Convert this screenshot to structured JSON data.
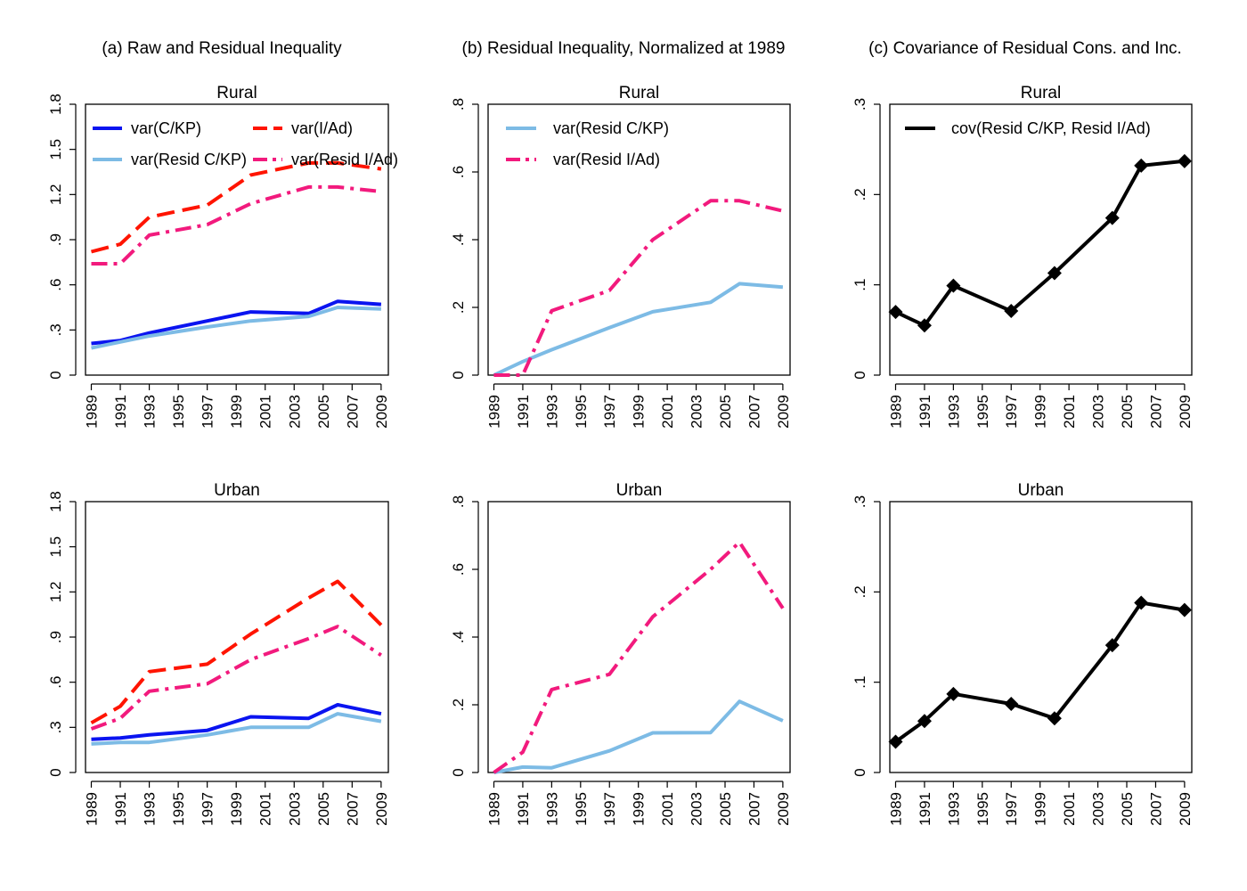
{
  "figure": {
    "column_titles": [
      "(a) Raw and Residual Inequality",
      "(b) Residual Inequality, Normalized at 1989",
      "(c) Covariance of Residual Cons. and Inc."
    ]
  },
  "colors": {
    "blue": "#0a14f0",
    "light_blue": "#7dbbe5",
    "red": "#ff1400",
    "pink": "#f21a7d",
    "black": "#000000"
  },
  "chart_data": [
    {
      "type": "line",
      "column": 0,
      "row": 0,
      "title": "Rural",
      "xlabel": "",
      "ylabel": "",
      "xlim": [
        1988.6,
        2009.5
      ],
      "ylim": [
        0,
        1.8
      ],
      "x_ticks": [
        "1989",
        "1991",
        "1993",
        "1995",
        "1997",
        "1999",
        "2001",
        "2003",
        "2005",
        "2007",
        "2009"
      ],
      "y_ticks": [
        "0",
        ".3",
        ".6",
        ".9",
        "1.2",
        "1.5",
        "1.8"
      ],
      "legend_position": "top",
      "series": [
        {
          "name": "var(C/KP)",
          "color": "blue",
          "style": "solid",
          "x": [
            1989,
            1991,
            1993,
            1997,
            2000,
            2004,
            2006,
            2009
          ],
          "y": [
            0.21,
            0.23,
            0.28,
            0.36,
            0.42,
            0.41,
            0.49,
            0.47
          ]
        },
        {
          "name": "var(I/Ad)",
          "color": "red",
          "style": "dashed",
          "x": [
            1989,
            1991,
            1993,
            1997,
            2000,
            2004,
            2006,
            2009
          ],
          "y": [
            0.82,
            0.87,
            1.05,
            1.13,
            1.33,
            1.41,
            1.41,
            1.37
          ]
        },
        {
          "name": "var(Resid C/KP)",
          "color": "light_blue",
          "style": "solid",
          "x": [
            1989,
            1991,
            1993,
            1997,
            2000,
            2004,
            2006,
            2009
          ],
          "y": [
            0.18,
            0.22,
            0.26,
            0.32,
            0.36,
            0.39,
            0.45,
            0.44
          ]
        },
        {
          "name": "var(Resid I/Ad)",
          "color": "pink",
          "style": "dashdot",
          "x": [
            1989,
            1991,
            1993,
            1997,
            2000,
            2004,
            2006,
            2009
          ],
          "y": [
            0.74,
            0.74,
            0.93,
            1.0,
            1.14,
            1.25,
            1.25,
            1.22
          ]
        }
      ]
    },
    {
      "type": "line",
      "column": 0,
      "row": 1,
      "title": "Urban",
      "xlabel": "",
      "ylabel": "",
      "xlim": [
        1988.6,
        2009.5
      ],
      "ylim": [
        0,
        1.8
      ],
      "x_ticks": [
        "1989",
        "1991",
        "1993",
        "1995",
        "1997",
        "1999",
        "2001",
        "2003",
        "2005",
        "2007",
        "2009"
      ],
      "y_ticks": [
        "0",
        ".3",
        ".6",
        ".9",
        "1.2",
        "1.5",
        "1.8"
      ],
      "series": [
        {
          "name": "var(C/KP)",
          "color": "blue",
          "style": "solid",
          "x": [
            1989,
            1991,
            1993,
            1997,
            2000,
            2004,
            2006,
            2009
          ],
          "y": [
            0.22,
            0.23,
            0.25,
            0.28,
            0.37,
            0.36,
            0.45,
            0.39
          ]
        },
        {
          "name": "var(I/Ad)",
          "color": "red",
          "style": "dashed",
          "x": [
            1989,
            1991,
            1993,
            1997,
            2000,
            2004,
            2006,
            2009
          ],
          "y": [
            0.33,
            0.44,
            0.67,
            0.72,
            0.92,
            1.16,
            1.27,
            0.98
          ]
        },
        {
          "name": "var(Resid C/KP)",
          "color": "light_blue",
          "style": "solid",
          "x": [
            1989,
            1991,
            1993,
            1997,
            2000,
            2004,
            2006,
            2009
          ],
          "y": [
            0.19,
            0.2,
            0.2,
            0.25,
            0.3,
            0.3,
            0.39,
            0.34
          ]
        },
        {
          "name": "var(Resid I/Ad)",
          "color": "pink",
          "style": "dashdot",
          "x": [
            1989,
            1991,
            1993,
            1997,
            2000,
            2004,
            2006,
            2009
          ],
          "y": [
            0.29,
            0.36,
            0.54,
            0.59,
            0.75,
            0.89,
            0.97,
            0.78
          ]
        }
      ]
    },
    {
      "type": "line",
      "column": 1,
      "row": 0,
      "title": "Rural",
      "xlabel": "",
      "ylabel": "",
      "xlim": [
        1988.6,
        2009.5
      ],
      "ylim": [
        0,
        0.8
      ],
      "x_ticks": [
        "1989",
        "1991",
        "1993",
        "1995",
        "1997",
        "1999",
        "2001",
        "2003",
        "2005",
        "2007",
        "2009"
      ],
      "y_ticks": [
        "0",
        ".2",
        ".4",
        ".6",
        ".8"
      ],
      "legend_position": "top-left",
      "series": [
        {
          "name": "var(Resid C/KP)",
          "color": "light_blue",
          "style": "solid",
          "x": [
            1989,
            1991,
            1993,
            1997,
            2000,
            2004,
            2006,
            2009
          ],
          "y": [
            0.0,
            0.04,
            0.075,
            0.14,
            0.187,
            0.215,
            0.27,
            0.26
          ]
        },
        {
          "name": "var(Resid I/Ad)",
          "color": "pink",
          "style": "dashdot",
          "x": [
            1989,
            1991,
            1993,
            1997,
            2000,
            2004,
            2006,
            2009
          ],
          "y": [
            0.0,
            0.0,
            0.19,
            0.25,
            0.4,
            0.515,
            0.515,
            0.485
          ]
        }
      ]
    },
    {
      "type": "line",
      "column": 1,
      "row": 1,
      "title": "Urban",
      "xlabel": "",
      "ylabel": "",
      "xlim": [
        1988.6,
        2009.5
      ],
      "ylim": [
        0,
        0.8
      ],
      "x_ticks": [
        "1989",
        "1991",
        "1993",
        "1995",
        "1997",
        "1999",
        "2001",
        "2003",
        "2005",
        "2007",
        "2009"
      ],
      "y_ticks": [
        "0",
        ".2",
        ".4",
        ".6",
        ".8"
      ],
      "series": [
        {
          "name": "var(Resid C/KP)",
          "color": "light_blue",
          "style": "solid",
          "x": [
            1989,
            1991,
            1993,
            1997,
            2000,
            2004,
            2006,
            2009
          ],
          "y": [
            0.0,
            0.016,
            0.014,
            0.064,
            0.117,
            0.118,
            0.21,
            0.153
          ]
        },
        {
          "name": "var(Resid I/Ad)",
          "color": "pink",
          "style": "dashdot",
          "x": [
            1989,
            1991,
            1993,
            1997,
            2000,
            2004,
            2006,
            2009
          ],
          "y": [
            0.0,
            0.06,
            0.245,
            0.29,
            0.46,
            0.6,
            0.68,
            0.485
          ]
        }
      ]
    },
    {
      "type": "line",
      "column": 2,
      "row": 0,
      "title": "Rural",
      "xlabel": "",
      "ylabel": "",
      "xlim": [
        1988.6,
        2009.5
      ],
      "ylim": [
        0,
        0.3
      ],
      "x_ticks": [
        "1989",
        "1991",
        "1993",
        "1995",
        "1997",
        "1999",
        "2001",
        "2003",
        "2005",
        "2007",
        "2009"
      ],
      "y_ticks": [
        "0",
        ".1",
        ".2",
        ".3"
      ],
      "legend_position": "top",
      "series": [
        {
          "name": "cov(Resid C/KP, Resid I/Ad)",
          "color": "black",
          "style": "solid",
          "markers": "diamond",
          "x": [
            1989,
            1991,
            1993,
            1997,
            2000,
            2004,
            2006,
            2009
          ],
          "y": [
            0.07,
            0.055,
            0.099,
            0.071,
            0.113,
            0.174,
            0.232,
            0.237
          ]
        }
      ]
    },
    {
      "type": "line",
      "column": 2,
      "row": 1,
      "title": "Urban",
      "xlabel": "",
      "ylabel": "",
      "xlim": [
        1988.6,
        2009.5
      ],
      "ylim": [
        0,
        0.3
      ],
      "x_ticks": [
        "1989",
        "1991",
        "1993",
        "1995",
        "1997",
        "1999",
        "2001",
        "2003",
        "2005",
        "2007",
        "2009"
      ],
      "y_ticks": [
        "0",
        ".1",
        ".2",
        ".3"
      ],
      "series": [
        {
          "name": "cov(Resid C/KP, Resid I/Ad)",
          "color": "black",
          "style": "solid",
          "markers": "diamond",
          "x": [
            1989,
            1991,
            1993,
            1997,
            2000,
            2004,
            2006,
            2009
          ],
          "y": [
            0.034,
            0.057,
            0.087,
            0.076,
            0.06,
            0.141,
            0.188,
            0.18
          ]
        }
      ]
    }
  ]
}
